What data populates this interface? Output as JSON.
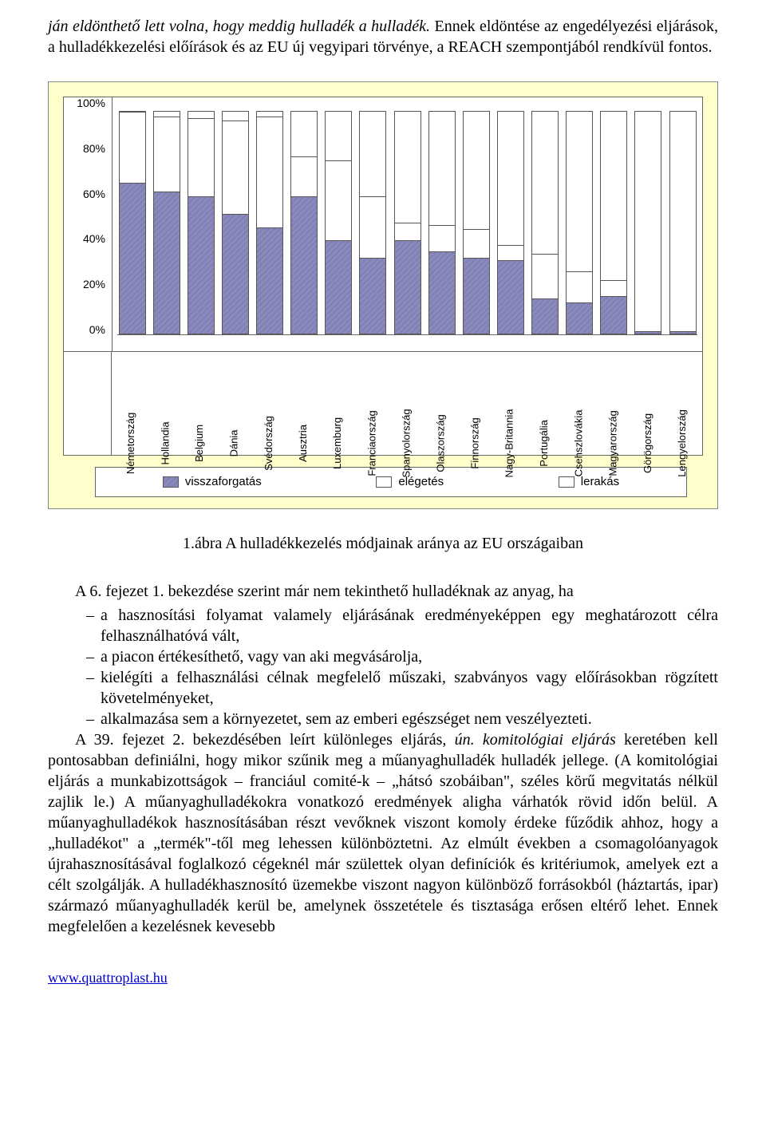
{
  "intro": {
    "italic_part": "ján eldönthető lett volna, hogy meddig hulladék a hulladék.",
    "rest": " Ennek eldöntése az engedélyezési eljárások, a hulladékkezelési előírások és az EU új vegyipari törvénye, a REACH szempontjából rendkívül fontos."
  },
  "chart": {
    "type": "stacked-bar",
    "background_color": "#ffffcc",
    "plot_bg": "#ffffff",
    "ylim": [
      0,
      100
    ],
    "yticks": [
      "100%",
      "80%",
      "60%",
      "40%",
      "20%",
      "0%"
    ],
    "series_names": {
      "recycle": "visszaforgatás",
      "burn": "elégetés",
      "landfill": "lerakás"
    },
    "colors": {
      "recycle": "#8a8abf",
      "burn": "#ffffff",
      "landfill": "#ffffff",
      "border": "#555555"
    },
    "categories": [
      "Németország",
      "Hollandia",
      "Belgium",
      "Dánia",
      "Svédország",
      "Ausztria",
      "Luxemburg",
      "Franciaország",
      "Spanyolország",
      "Olaszország",
      "Finnország",
      "Nagy-Britannia",
      "Portugália",
      "Csehszlovákia",
      "Magyarország",
      "Görögország",
      "Lengyelország"
    ],
    "values_recycle": [
      68,
      64,
      62,
      54,
      48,
      62,
      42,
      34,
      42,
      37,
      34,
      33,
      16,
      14,
      17,
      1,
      1
    ],
    "values_burn": [
      32,
      34,
      35,
      42,
      50,
      18,
      36,
      28,
      8,
      12,
      13,
      7,
      20,
      14,
      7,
      0,
      0
    ],
    "values_landfill": [
      0,
      2,
      3,
      4,
      2,
      20,
      22,
      38,
      50,
      51,
      53,
      60,
      64,
      72,
      76,
      99,
      99
    ]
  },
  "caption": "1.ábra A hulladékkezelés módjainak aránya az EU országaiban",
  "body": {
    "lead": "A 6. fejezet 1. bekezdése szerint már nem tekinthető hulladéknak az anyag, ha",
    "bullets": [
      "a hasznosítási folyamat valamely eljárásának eredményeképpen egy meghatározott célra felhasználhatóvá vált,",
      "a piacon értékesíthető, vagy van aki megvásárolja,",
      "kielégíti a felhasználási célnak megfelelő műszaki, szabványos vagy előírásokban rögzített követelményeket,",
      "alkalmazása sem a környezetet, sem az emberi egészséget nem veszélyezteti."
    ],
    "para2_a": "A 39. fejezet 2. bekezdésében leírt különleges eljárás, ",
    "para2_it": "ún. komitológiai eljárás",
    "para2_b": " keretében kell pontosabban definiálni, hogy mikor szűnik meg a műanyaghulladék hulladék jellege. (A komitológiai eljárás a munkabizottságok – franciául comité-k – „hátsó szobáiban\", széles körű megvitatás nélkül zajlik le.) A műanyaghulladékokra vonatkozó eredmények aligha várhatók rövid időn belül. A műanyaghulladékok hasznosításában részt vevőknek viszont komoly érdeke fűződik ahhoz, hogy a „hulladékot\" a „termék\"-től meg lehessen különböztetni. Az elmúlt években a csomagolóanyagok újrahasznosításával foglalkozó cégeknél már születtek olyan definíciók és kritériumok, amelyek ezt a célt szolgálják. A hulladékhasznosító üzemekbe viszont nagyon különböző forrásokból (háztartás, ipar) származó műanyaghulladék kerül be, amelynek összetétele és tisztasága erősen eltérő lehet. Ennek megfelelően a kezelésnek kevesebb"
  },
  "footer_link": "www.quattroplast.hu"
}
